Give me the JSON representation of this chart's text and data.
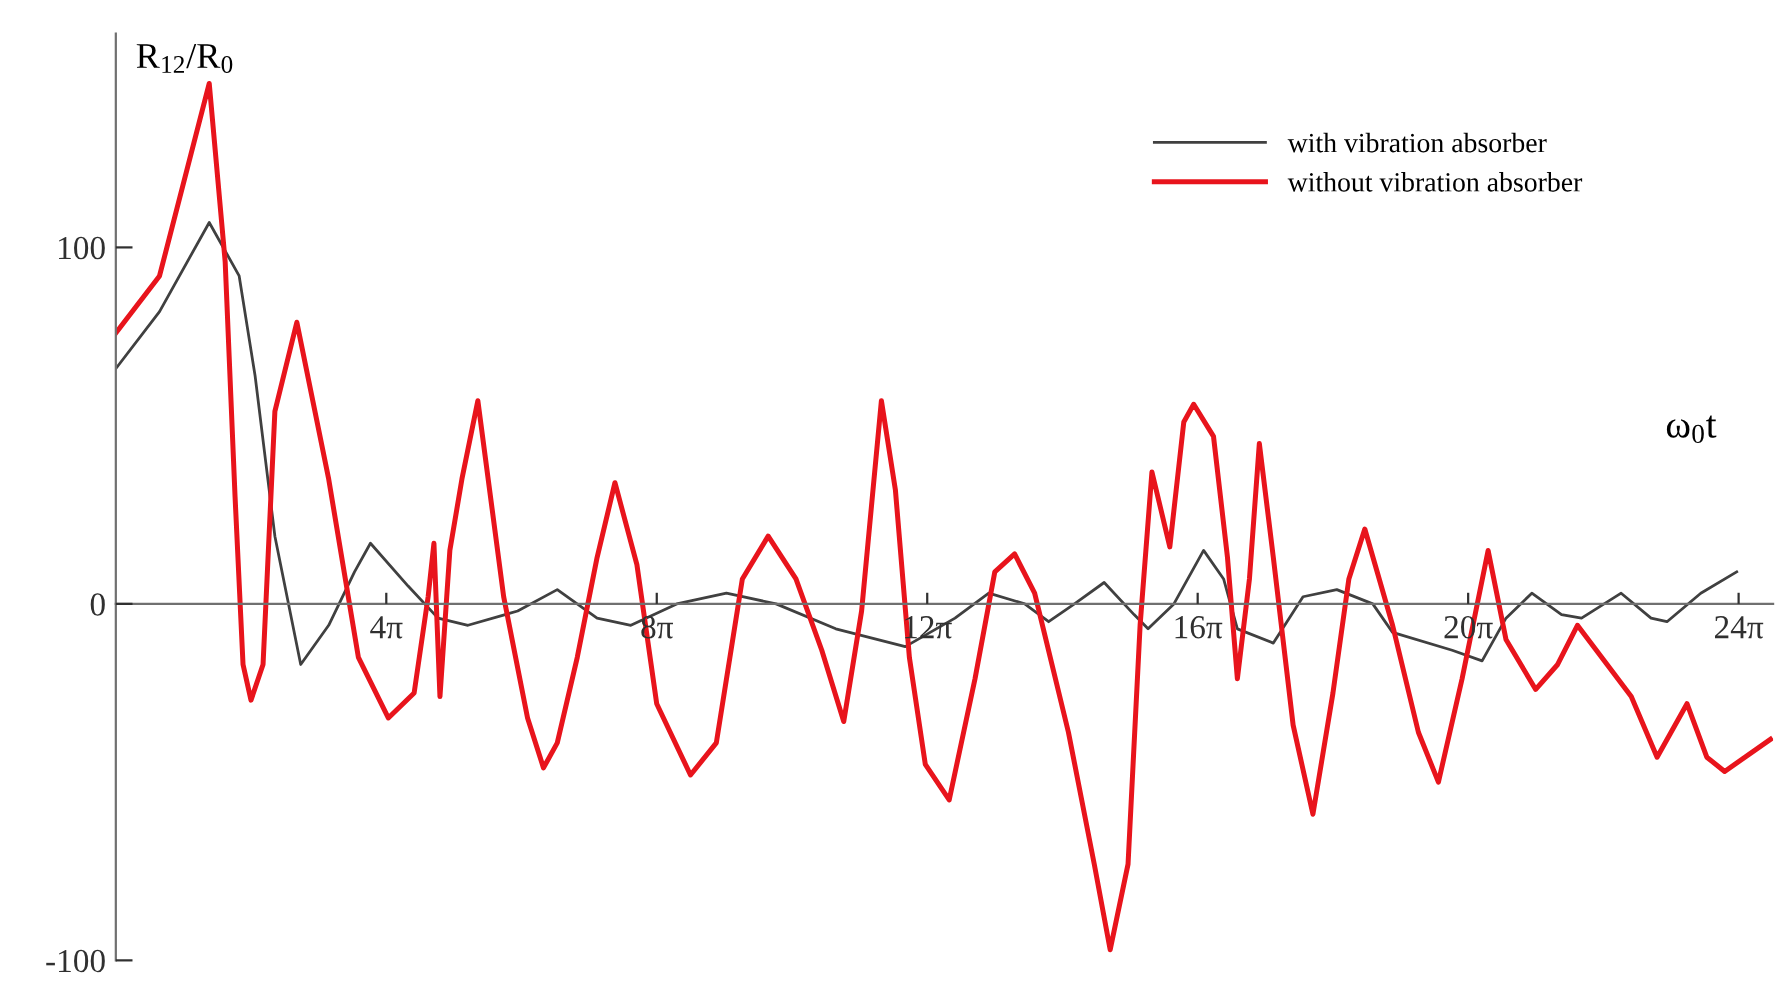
{
  "chart_data": {
    "type": "line",
    "xlabel": "ω$_{0}$t",
    "ylabel": "R$_{12}$/R$_{0}$",
    "xlim": [
      0,
      77
    ],
    "ylim": [
      -100,
      160
    ],
    "xticks": [
      {
        "value": 12.566,
        "label": "4π"
      },
      {
        "value": 25.133,
        "label": "8π"
      },
      {
        "value": 37.699,
        "label": "12π"
      },
      {
        "value": 50.265,
        "label": "16π"
      },
      {
        "value": 62.832,
        "label": "20π"
      },
      {
        "value": 75.398,
        "label": "24π"
      }
    ],
    "yticks": [
      -100,
      0,
      100
    ],
    "legend": "top right",
    "grid": false,
    "series": [
      {
        "name": "with vibration absorber",
        "color": "#404040",
        "x": [
          0,
          2.03,
          4.34,
          5.73,
          6.47,
          7.39,
          8.59,
          9.89,
          11.09,
          11.83,
          13.58,
          14.97,
          16.36,
          18.67,
          20.51,
          22.36,
          23.93,
          26.06,
          28.37,
          30.68,
          33.45,
          36.68,
          38.99,
          40.56,
          42.23,
          43.34,
          44.54,
          45.92,
          47.31,
          47.96,
          49.16,
          50.54,
          51.47,
          52.11,
          53.78,
          55.16,
          56.73,
          58.4,
          59.32,
          62.09,
          63.48,
          64.59,
          65.79,
          67.17,
          68.1,
          69.94,
          71.33,
          72.07,
          73.64,
          75.31
        ],
        "values": [
          66,
          82,
          107,
          92,
          64,
          19,
          -17,
          -6,
          9,
          17,
          5,
          -4,
          -6,
          -2,
          4,
          -4,
          -6,
          0,
          3,
          0,
          -7,
          -12,
          -4,
          3,
          0,
          -5,
          0,
          6,
          -3,
          -7,
          0,
          15,
          7,
          -7,
          -11,
          2,
          4,
          0,
          -8,
          -13,
          -16,
          -4,
          3,
          -3,
          -4,
          3,
          -4,
          -5,
          3,
          9
        ]
      },
      {
        "name": "without vibration absorber",
        "color": "#e8141c",
        "x": [
          0,
          2.03,
          4.34,
          5.08,
          5.54,
          5.91,
          6.28,
          6.84,
          7.39,
          8.41,
          9.89,
          11.27,
          12.66,
          13.86,
          14.51,
          14.78,
          15.06,
          15.52,
          16.08,
          16.82,
          18.02,
          19.13,
          19.87,
          20.51,
          21.44,
          22.36,
          23.19,
          24.21,
          25.13,
          26.7,
          27.9,
          29.11,
          30.31,
          31.6,
          32.8,
          33.82,
          34.65,
          35.57,
          36.22,
          36.87,
          37.61,
          38.72,
          39.92,
          40.84,
          41.76,
          42.69,
          44.26,
          45.46,
          46.2,
          47.03,
          47.59,
          48.14,
          48.97,
          49.62,
          50.08,
          51.0,
          51.65,
          52.11,
          52.67,
          53.13,
          53.78,
          54.7,
          55.62,
          56.55,
          57.29,
          58.03,
          59.32,
          60.52,
          61.45,
          62.55,
          63.76,
          64.59,
          65.97,
          66.99,
          67.91,
          70.41,
          71.61,
          73.0,
          73.92,
          74.75,
          76.88
        ],
        "values": [
          76,
          92,
          146,
          96,
          30,
          -17,
          -27,
          -17,
          54,
          79,
          35,
          -15,
          -32,
          -25,
          2,
          17,
          -26,
          15,
          35,
          57,
          2,
          -32,
          -46,
          -39,
          -15,
          13,
          34,
          11,
          -28,
          -48,
          -39,
          7,
          19,
          7,
          -13,
          -33,
          -2,
          57,
          32,
          -15,
          -45,
          -55,
          -21,
          9,
          14,
          3,
          -36,
          -73,
          -97,
          -73,
          -6,
          37,
          16,
          51,
          56,
          47,
          13,
          -21,
          7,
          45,
          13,
          -34,
          -59,
          -25,
          7,
          21,
          -6,
          -36,
          -50,
          -21,
          15,
          -10,
          -24,
          -17,
          -6,
          -26,
          -43,
          -28,
          -43,
          -47,
          -38
        ]
      }
    ]
  }
}
